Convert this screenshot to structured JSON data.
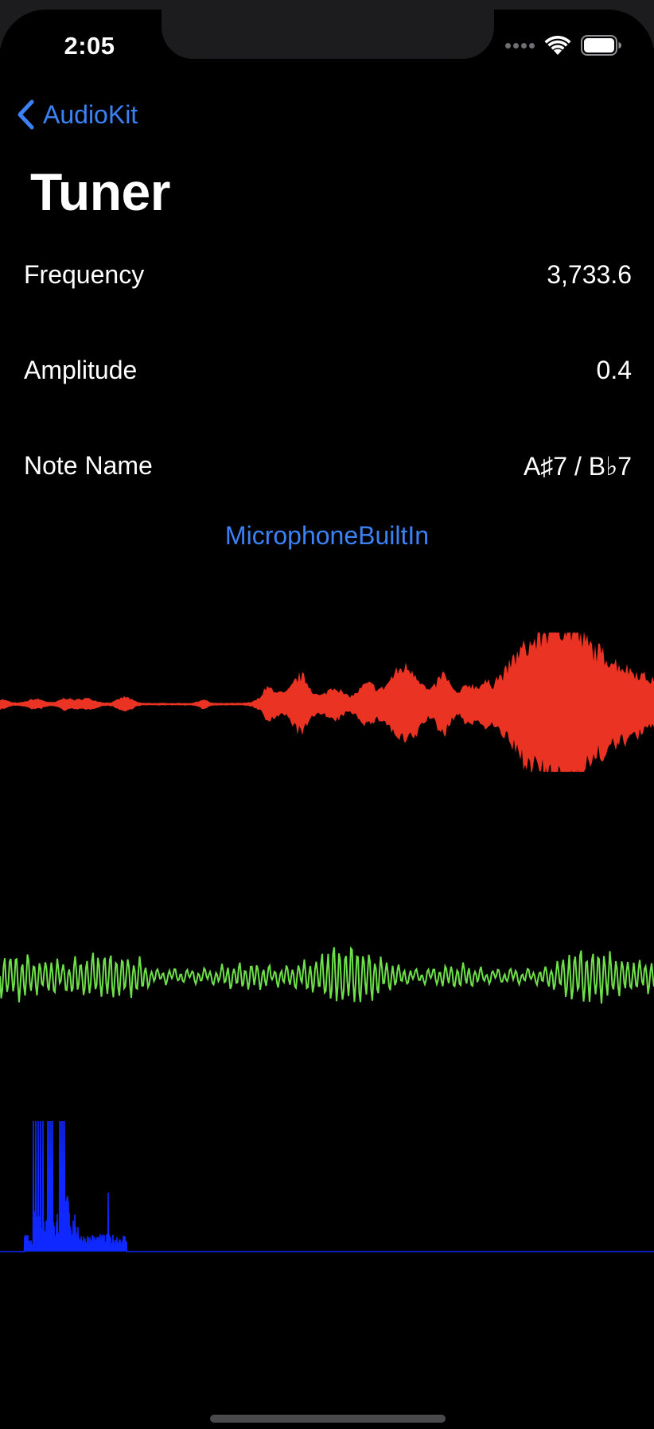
{
  "status_bar": {
    "time": "2:05"
  },
  "nav": {
    "back_label": "AudioKit",
    "title": "Tuner"
  },
  "readings": [
    {
      "label": "Frequency",
      "value": "3,733.6"
    },
    {
      "label": "Amplitude",
      "value": "0.4"
    },
    {
      "label": "Note Name",
      "value": "A♯7 / B♭7"
    }
  ],
  "input_device": "MicrophoneBuiltIn",
  "colors": {
    "accent": "#3b82f6",
    "rolling_plot": "#ea3323",
    "waveform_plot": "#6ee04a",
    "fft_plot": "#0f28ff"
  },
  "icons": {
    "back": "chevron-left-icon",
    "signal": "cellular-signal-icon",
    "wifi": "wifi-icon",
    "battery": "battery-icon"
  }
}
